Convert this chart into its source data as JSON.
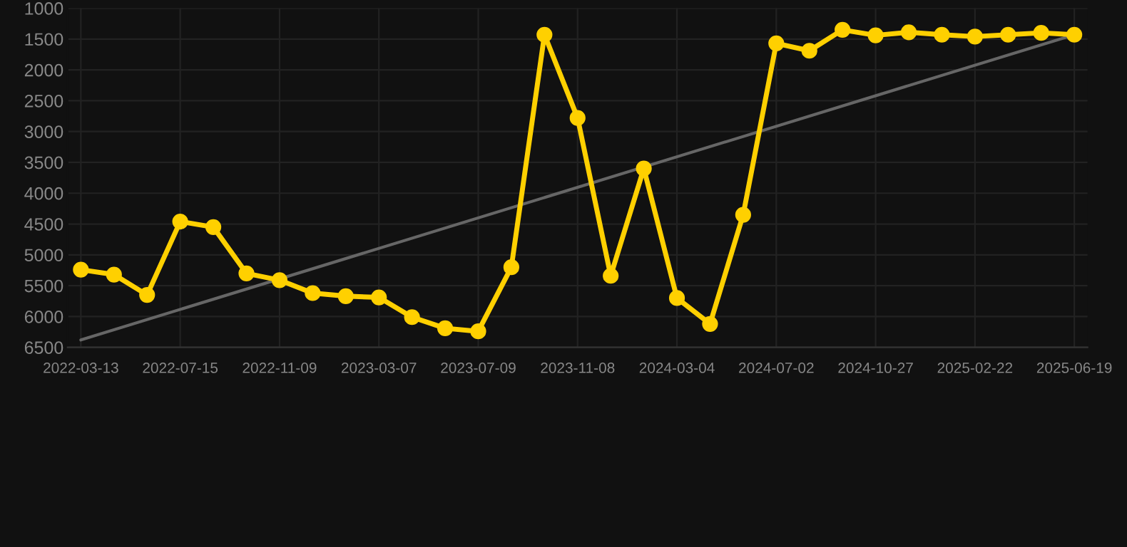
{
  "chart_data": {
    "type": "line",
    "categories": [
      "2022-03-13",
      null,
      null,
      "2022-07-15",
      null,
      null,
      "2022-11-09",
      null,
      null,
      "2023-03-07",
      null,
      null,
      "2023-07-09",
      null,
      null,
      "2023-11-08",
      null,
      null,
      "2024-03-04",
      null,
      null,
      "2024-07-02",
      null,
      null,
      "2024-10-27",
      null,
      null,
      "2025-02-22",
      null,
      null,
      "2025-06-19"
    ],
    "series": [
      {
        "color": "#ffd000",
        "values": [
          5240,
          5320,
          5650,
          4460,
          4550,
          5300,
          5410,
          5620,
          5670,
          5690,
          6010,
          6190,
          6240,
          5200,
          1430,
          2780,
          5340,
          3600,
          5700,
          6120,
          4350,
          1570,
          1690,
          1350,
          1440,
          1390,
          1430,
          1460,
          1430,
          1400,
          1430
        ]
      },
      {
        "type": "line",
        "color": "#666666",
        "marker": "none",
        "values": [
          6380,
          null,
          null,
          null,
          null,
          null,
          null,
          null,
          null,
          null,
          null,
          null,
          null,
          null,
          null,
          null,
          null,
          null,
          null,
          null,
          null,
          null,
          null,
          null,
          null,
          null,
          null,
          null,
          null,
          null,
          1430
        ]
      }
    ],
    "ylim": [
      6500,
      1000
    ],
    "yticks": [
      1000,
      1500,
      2000,
      2500,
      3000,
      3500,
      4000,
      4500,
      5000,
      5500,
      6000,
      6500
    ],
    "grid": true,
    "marker": "circle",
    "line_style": "solid"
  }
}
